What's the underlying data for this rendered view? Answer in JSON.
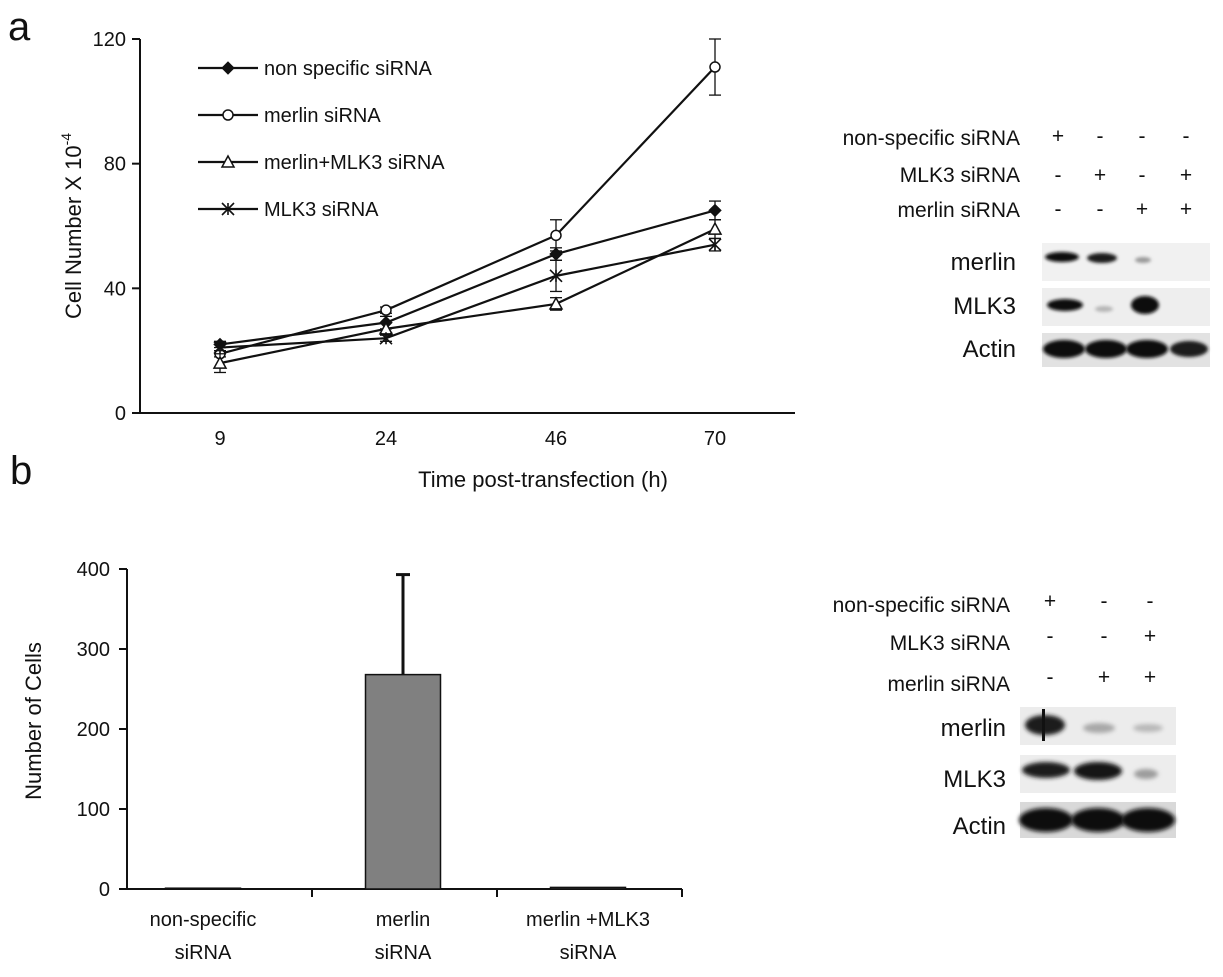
{
  "panels": [
    {
      "letter": "a"
    },
    {
      "letter": "b"
    }
  ],
  "chart_data": [
    {
      "type": "line",
      "xlabel": "Time post-transfection (h)",
      "ylabel": "Cell Number  X 10",
      "ylabel_exponent": "-4",
      "categories": [
        "9",
        "24",
        "46",
        "70"
      ],
      "ylim": [
        0,
        120
      ],
      "yticks": [
        "0",
        "40",
        "80",
        "120"
      ],
      "grid": false,
      "legend_position": "top-left",
      "series": [
        {
          "name": "non specific siRNA",
          "marker": "filled-diamond",
          "values": [
            22,
            29,
            51,
            65
          ],
          "errors": [
            1,
            2,
            2,
            3
          ]
        },
        {
          "name": "merlin siRNA",
          "marker": "open-circle",
          "values": [
            19,
            33,
            57,
            111
          ],
          "errors": [
            1,
            1,
            5,
            9
          ]
        },
        {
          "name": "merlin+MLK3 siRNA",
          "marker": "open-triangle",
          "values": [
            16,
            27,
            35,
            59
          ],
          "errors": [
            3,
            2,
            2,
            3
          ]
        },
        {
          "name": "MLK3 siRNA",
          "marker": "star-cross",
          "values": [
            21,
            24,
            44,
            54
          ],
          "errors": [
            1,
            1,
            5,
            2
          ]
        }
      ]
    },
    {
      "type": "bar",
      "ylabel": "Number of Cells",
      "categories": [
        "non-specific siRNA",
        "merlin siRNA",
        "merlin +MLK3 siRNA"
      ],
      "category_lines": [
        [
          "non-specific",
          "siRNA"
        ],
        [
          "merlin",
          "siRNA"
        ],
        [
          "merlin +MLK3",
          "siRNA"
        ]
      ],
      "values": [
        1,
        268,
        2
      ],
      "errors": [
        0,
        125,
        0
      ],
      "ylim": [
        0,
        400
      ],
      "yticks": [
        "0",
        "100",
        "200",
        "300",
        "400"
      ],
      "bar_color": "#808080",
      "grid": false
    }
  ],
  "blot_a": {
    "conditions": [
      {
        "label": "non-specific siRNA",
        "signs": [
          "+",
          "-",
          "-",
          "-"
        ]
      },
      {
        "label": "MLK3 siRNA",
        "signs": [
          "-",
          "+",
          "-",
          "+"
        ]
      },
      {
        "label": "merlin siRNA",
        "signs": [
          "-",
          "-",
          "+",
          "+"
        ]
      }
    ],
    "bands": [
      {
        "label": "merlin"
      },
      {
        "label": "MLK3"
      },
      {
        "label": "Actin"
      }
    ]
  },
  "blot_b": {
    "conditions": [
      {
        "label": "non-specific siRNA",
        "signs": [
          "+",
          "-",
          "-"
        ]
      },
      {
        "label": "MLK3 siRNA",
        "signs": [
          "-",
          "-",
          "+"
        ]
      },
      {
        "label": "merlin siRNA",
        "signs": [
          "-",
          "+",
          "+"
        ]
      }
    ],
    "bands": [
      {
        "label": "merlin"
      },
      {
        "label": "MLK3"
      },
      {
        "label": "Actin"
      }
    ]
  }
}
